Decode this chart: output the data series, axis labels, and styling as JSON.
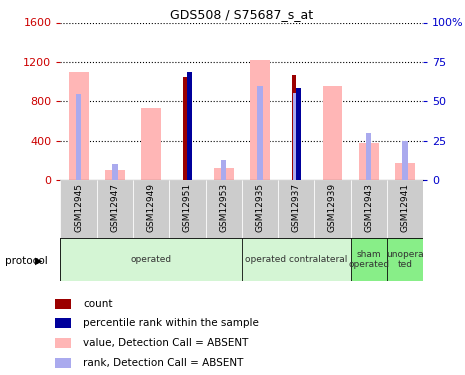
{
  "title": "GDS508 / S75687_s_at",
  "samples": [
    "GSM12945",
    "GSM12947",
    "GSM12949",
    "GSM12951",
    "GSM12953",
    "GSM12935",
    "GSM12937",
    "GSM12939",
    "GSM12943",
    "GSM12941"
  ],
  "value_absent": [
    1100,
    100,
    730,
    null,
    120,
    1220,
    null,
    960,
    380,
    170
  ],
  "rank_absent_large": [
    870,
    null,
    null,
    null,
    null,
    960,
    880,
    null,
    null,
    null
  ],
  "count_value": [
    null,
    null,
    null,
    1050,
    null,
    null,
    1070,
    null,
    null,
    null
  ],
  "percentile_rank_value": [
    null,
    null,
    null,
    1100,
    null,
    null,
    930,
    null,
    null,
    null
  ],
  "rank_absent_small": [
    null,
    160,
    null,
    null,
    200,
    null,
    null,
    null,
    480,
    400
  ],
  "protocol_groups": [
    {
      "label": "operated",
      "start": 0,
      "end": 5,
      "color": "#d4f5d4"
    },
    {
      "label": "operated contralateral",
      "start": 5,
      "end": 8,
      "color": "#d4f5d4"
    },
    {
      "label": "sham\noperated",
      "start": 8,
      "end": 9,
      "color": "#88ee88"
    },
    {
      "label": "unopera\nted",
      "start": 9,
      "end": 10,
      "color": "#88ee88"
    }
  ],
  "ylim_left": [
    0,
    1600
  ],
  "ylim_right": [
    0,
    100
  ],
  "yticks_left": [
    0,
    400,
    800,
    1200,
    1600
  ],
  "yticks_right": [
    0,
    25,
    50,
    75,
    100
  ],
  "color_count": "#9B0000",
  "color_percentile": "#00009B",
  "color_value_absent": "#FFB6B6",
  "color_rank_absent": "#AAAAEE",
  "left_tick_color": "#cc0000",
  "right_tick_color": "#0000cc",
  "protocol_label": "protocol",
  "legend_items": [
    {
      "color": "#9B0000",
      "label": "count"
    },
    {
      "color": "#00009B",
      "label": "percentile rank within the sample"
    },
    {
      "color": "#FFB6B6",
      "label": "value, Detection Call = ABSENT"
    },
    {
      "color": "#AAAAEE",
      "label": "rank, Detection Call = ABSENT"
    }
  ]
}
